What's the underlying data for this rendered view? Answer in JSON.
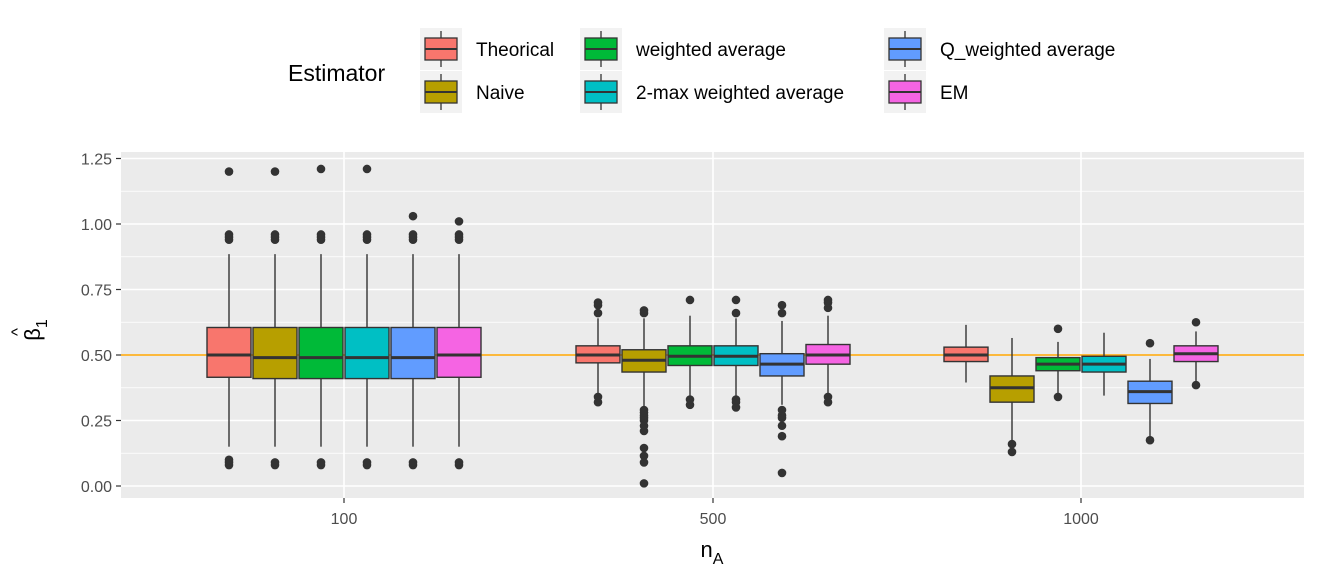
{
  "chart_data": {
    "type": "boxplot",
    "xlabel": "n",
    "xlabel_sub": "A",
    "ylabel_hat": "^",
    "ylabel": "β",
    "ylabel_sub": "1",
    "categories": [
      "100",
      "500",
      "1000"
    ],
    "y_ticks": [
      "0.00",
      "0.25",
      "0.50",
      "0.75",
      "1.00",
      "1.25"
    ],
    "ylim": [
      -0.05,
      1.26
    ],
    "reference_line": 0.5,
    "reference_line_color": "#FFA500",
    "grid": true,
    "legend": {
      "title": "Estimator",
      "position": "top",
      "columns": [
        [
          "Theorical",
          " Naive"
        ],
        [
          "weighted average",
          "2-max weighted average"
        ],
        [
          "Q_weighted average",
          "EM"
        ]
      ]
    },
    "series": [
      {
        "name": "Theorical",
        "color": "#F8766D",
        "boxes": [
          {
            "min": 0.15,
            "q1": 0.415,
            "median": 0.5,
            "q3": 0.605,
            "max": 0.885,
            "outliers": [
              0.08,
              0.09,
              0.1,
              0.94,
              0.95,
              0.96,
              1.2
            ]
          },
          {
            "min": 0.355,
            "q1": 0.47,
            "median": 0.5,
            "q3": 0.535,
            "max": 0.64,
            "outliers": [
              0.32,
              0.34,
              0.66,
              0.69,
              0.7
            ]
          },
          {
            "min": 0.395,
            "q1": 0.475,
            "median": 0.5,
            "q3": 0.53,
            "max": 0.615,
            "outliers": []
          }
        ]
      },
      {
        "name": " Naive",
        "color": "#B79F00",
        "boxes": [
          {
            "min": 0.15,
            "q1": 0.41,
            "median": 0.49,
            "q3": 0.605,
            "max": 0.885,
            "outliers": [
              0.08,
              0.09,
              0.94,
              0.95,
              0.96,
              1.2
            ]
          },
          {
            "min": 0.3,
            "q1": 0.435,
            "median": 0.48,
            "q3": 0.52,
            "max": 0.64,
            "outliers": [
              0.01,
              0.09,
              0.115,
              0.145,
              0.21,
              0.23,
              0.25,
              0.26,
              0.27,
              0.28,
              0.29,
              0.66,
              0.67
            ]
          },
          {
            "min": 0.165,
            "q1": 0.32,
            "median": 0.375,
            "q3": 0.42,
            "max": 0.565,
            "outliers": [
              0.13,
              0.16
            ]
          }
        ]
      },
      {
        "name": "weighted average",
        "color": "#00BA38",
        "boxes": [
          {
            "min": 0.15,
            "q1": 0.41,
            "median": 0.49,
            "q3": 0.605,
            "max": 0.885,
            "outliers": [
              0.08,
              0.09,
              0.94,
              0.95,
              0.96,
              1.21
            ]
          },
          {
            "min": 0.345,
            "q1": 0.46,
            "median": 0.495,
            "q3": 0.535,
            "max": 0.65,
            "outliers": [
              0.31,
              0.33,
              0.71
            ]
          },
          {
            "min": 0.345,
            "q1": 0.44,
            "median": 0.465,
            "q3": 0.49,
            "max": 0.55,
            "outliers": [
              0.34,
              0.6
            ]
          }
        ]
      },
      {
        "name": "2-max weighted average",
        "color": "#00BFC4",
        "boxes": [
          {
            "min": 0.15,
            "q1": 0.41,
            "median": 0.49,
            "q3": 0.605,
            "max": 0.885,
            "outliers": [
              0.08,
              0.09,
              0.94,
              0.95,
              0.96,
              1.21
            ]
          },
          {
            "min": 0.345,
            "q1": 0.46,
            "median": 0.495,
            "q3": 0.535,
            "max": 0.64,
            "outliers": [
              0.3,
              0.32,
              0.33,
              0.66,
              0.71
            ]
          },
          {
            "min": 0.345,
            "q1": 0.435,
            "median": 0.465,
            "q3": 0.495,
            "max": 0.585,
            "outliers": []
          }
        ]
      },
      {
        "name": "Q_weighted average",
        "color": "#619CFF",
        "boxes": [
          {
            "min": 0.15,
            "q1": 0.41,
            "median": 0.49,
            "q3": 0.605,
            "max": 0.885,
            "outliers": [
              0.08,
              0.09,
              0.94,
              0.95,
              0.96,
              1.03
            ]
          },
          {
            "min": 0.31,
            "q1": 0.42,
            "median": 0.465,
            "q3": 0.505,
            "max": 0.63,
            "outliers": [
              0.05,
              0.19,
              0.23,
              0.26,
              0.27,
              0.29,
              0.66,
              0.69
            ]
          },
          {
            "min": 0.185,
            "q1": 0.315,
            "median": 0.36,
            "q3": 0.4,
            "max": 0.485,
            "outliers": [
              0.175,
              0.545
            ]
          }
        ]
      },
      {
        "name": "EM",
        "color": "#F564E3",
        "boxes": [
          {
            "min": 0.15,
            "q1": 0.415,
            "median": 0.5,
            "q3": 0.605,
            "max": 0.885,
            "outliers": [
              0.08,
              0.09,
              0.94,
              0.95,
              0.96,
              1.01
            ]
          },
          {
            "min": 0.345,
            "q1": 0.465,
            "median": 0.5,
            "q3": 0.54,
            "max": 0.65,
            "outliers": [
              0.32,
              0.34,
              0.68,
              0.7,
              0.71
            ]
          },
          {
            "min": 0.39,
            "q1": 0.475,
            "median": 0.505,
            "q3": 0.535,
            "max": 0.59,
            "outliers": [
              0.385,
              0.625
            ]
          }
        ]
      }
    ]
  }
}
